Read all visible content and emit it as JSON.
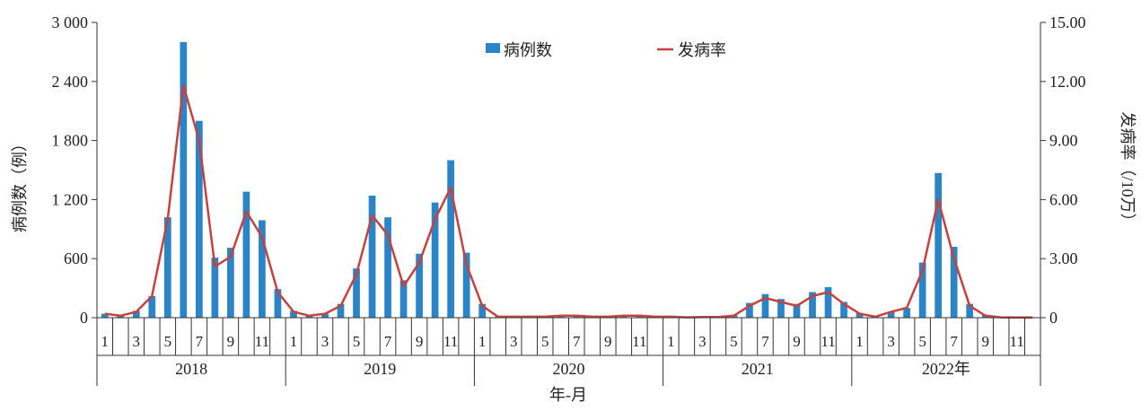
{
  "chart_data": {
    "type": "bar",
    "xlabel": "年-月",
    "ylabel_left": "病例数（例）",
    "ylabel_right": "发病率（/10万）",
    "y_left_lim": [
      0,
      3000
    ],
    "y_right_lim": [
      0,
      15
    ],
    "y_left_ticks": [
      "0",
      "600",
      "1 200",
      "1 800",
      "2 400",
      "3 000"
    ],
    "y_right_ticks": [
      "0",
      "3.00",
      "6.00",
      "9.00",
      "12.00",
      "15.00"
    ],
    "month_tick_labels": [
      "1",
      "3",
      "5",
      "7",
      "9",
      "11"
    ],
    "years": [
      "2018",
      "2019",
      "2020",
      "2021",
      "2022年"
    ],
    "legend": {
      "placement": "top-center",
      "bar_label": "病例数",
      "line_label": "发病率"
    },
    "colors": {
      "bar": "#2a84c6",
      "line": "#c8413e",
      "axis": "#333333"
    },
    "grid": false,
    "series": [
      {
        "name": "病例数",
        "type": "bar",
        "axis": "left",
        "values": [
          40,
          30,
          70,
          220,
          1020,
          2800,
          2000,
          610,
          710,
          1280,
          990,
          290,
          70,
          30,
          40,
          140,
          500,
          1240,
          1020,
          380,
          650,
          1170,
          1600,
          660,
          140,
          10,
          10,
          10,
          15,
          20,
          20,
          10,
          10,
          20,
          20,
          10,
          10,
          5,
          10,
          10,
          30,
          150,
          240,
          190,
          140,
          260,
          310,
          160,
          50,
          10,
          60,
          100,
          560,
          1470,
          720,
          140,
          30,
          10,
          5,
          5
        ]
      },
      {
        "name": "发病率",
        "type": "line",
        "axis": "right",
        "values": [
          0.2,
          0.1,
          0.3,
          1.1,
          5.0,
          11.8,
          9.0,
          2.6,
          3.1,
          5.4,
          4.1,
          1.3,
          0.3,
          0.1,
          0.2,
          0.6,
          2.2,
          5.2,
          4.2,
          1.6,
          2.8,
          5.0,
          6.6,
          2.7,
          0.6,
          0.05,
          0.05,
          0.05,
          0.05,
          0.1,
          0.1,
          0.05,
          0.05,
          0.1,
          0.1,
          0.05,
          0.05,
          0.02,
          0.03,
          0.03,
          0.1,
          0.6,
          1.0,
          0.8,
          0.6,
          1.1,
          1.3,
          0.7,
          0.2,
          0.05,
          0.3,
          0.5,
          2.4,
          6.0,
          3.0,
          0.6,
          0.1,
          0.02,
          0.01,
          0.01
        ]
      }
    ]
  }
}
